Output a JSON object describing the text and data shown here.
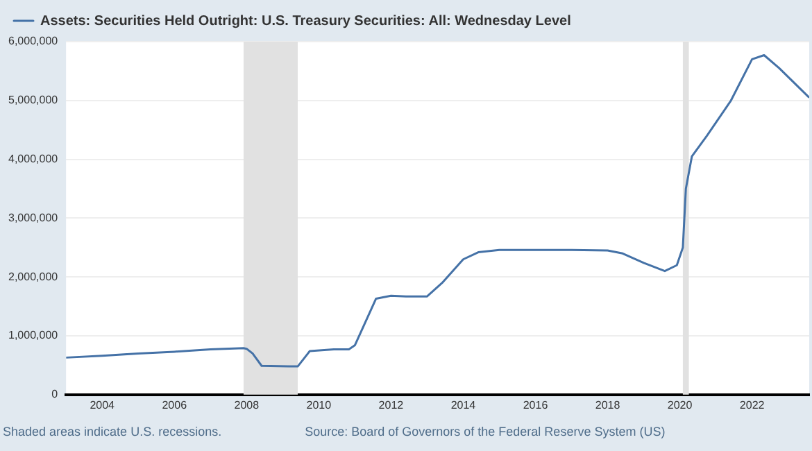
{
  "chart_data": {
    "type": "line",
    "x": [
      "2003-01",
      "2004-01",
      "2005-01",
      "2006-01",
      "2007-01",
      "2007-12",
      "2008-01",
      "2008-03",
      "2008-06",
      "2009-03",
      "2009-06",
      "2009-10",
      "2010-06",
      "2010-11",
      "2011-01",
      "2011-08",
      "2012-01",
      "2012-06",
      "2012-11",
      "2013-01",
      "2013-06",
      "2014-01",
      "2014-06",
      "2015-01",
      "2016-01",
      "2017-01",
      "2018-01",
      "2018-06",
      "2019-01",
      "2019-08",
      "2019-12",
      "2020-02",
      "2020-03",
      "2020-05",
      "2020-10",
      "2021-06",
      "2022-01",
      "2022-05",
      "2022-10",
      "2023-03",
      "2023-08"
    ],
    "series": [
      {
        "name": "Assets: Securities Held Outright: U.S. Treasury Securities: All: Wednesday Level",
        "color": "#4572a7",
        "values": [
          630000,
          660000,
          700000,
          730000,
          770000,
          790000,
          780000,
          700000,
          490000,
          480000,
          480000,
          740000,
          770000,
          770000,
          840000,
          1630000,
          1680000,
          1670000,
          1670000,
          1670000,
          1900000,
          2300000,
          2420000,
          2460000,
          2460000,
          2460000,
          2450000,
          2400000,
          2240000,
          2100000,
          2200000,
          2500000,
          3500000,
          4050000,
          4400000,
          5000000,
          5700000,
          5770000,
          5550000,
          5300000,
          5050000
        ]
      }
    ],
    "xlim": [
      "2003-01",
      "2023-08"
    ],
    "xticks": [
      {
        "value": "2004",
        "label": "2004"
      },
      {
        "value": "2006",
        "label": "2006"
      },
      {
        "value": "2008",
        "label": "2008"
      },
      {
        "value": "2010",
        "label": "2010"
      },
      {
        "value": "2012",
        "label": "2012"
      },
      {
        "value": "2014",
        "label": "2014"
      },
      {
        "value": "2016",
        "label": "2016"
      },
      {
        "value": "2018",
        "label": "2018"
      },
      {
        "value": "2020",
        "label": "2020"
      },
      {
        "value": "2022",
        "label": "2022"
      }
    ],
    "ylim": [
      0,
      6000000
    ],
    "yticks": [
      0,
      {
        "value": 1000000,
        "label": "1,000,000"
      },
      {
        "value": 2000000,
        "label": "2,000,000"
      },
      {
        "value": 3000000,
        "label": "3,000,000"
      },
      {
        "value": 4000000,
        "label": "4,000,000"
      },
      {
        "value": 5000000,
        "label": "5,000,000"
      },
      {
        "value": 6000000,
        "label": "6,000,000"
      }
    ],
    "bands": [
      {
        "axis": "x",
        "from": "2007-12",
        "to": "2009-06",
        "color": "#e1e1e1"
      },
      {
        "axis": "x",
        "from": "2020-02",
        "to": "2020-04",
        "color": "#e1e1e1"
      }
    ],
    "grid": "y",
    "legend": "top left",
    "marker": "none",
    "line_style": "solid",
    "annotations": [
      "Shaded areas indicate U.S. recessions.",
      "Source: Board of Governors of the Federal Reserve System (US)"
    ]
  }
}
